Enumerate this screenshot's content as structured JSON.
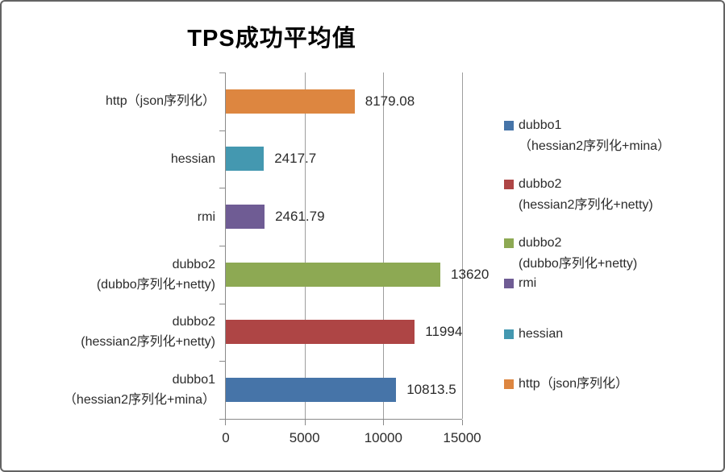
{
  "figure": {
    "title": "TPS成功平均值"
  },
  "chart_data": {
    "type": "bar",
    "orientation": "horizontal",
    "title": "TPS成功平均值",
    "categories": [
      "http（json序列化）",
      "hessian",
      "rmi",
      "dubbo2 (dubbo序列化+netty)",
      "dubbo2 (hessian2序列化+netty)",
      "dubbo1 （hessian2序列化+mina）"
    ],
    "values": [
      8179.08,
      2417.7,
      2461.79,
      13620,
      11994,
      10813.5
    ],
    "value_labels": [
      "8179.08",
      "2417.7",
      "2461.79",
      "13620",
      "11994",
      "10813.5"
    ],
    "xlim": [
      0,
      15000
    ],
    "x_ticks": [
      "0",
      "5000",
      "10000",
      "15000"
    ],
    "grid": true,
    "legend_position": "right"
  },
  "bars": [
    {
      "label_line1": "http（json序列化）",
      "label_line2": "",
      "value": 8179.08,
      "value_label": "8179.08",
      "color": "#DD8640"
    },
    {
      "label_line1": "hessian",
      "label_line2": "",
      "value": 2417.7,
      "value_label": "2417.7",
      "color": "#4498B0"
    },
    {
      "label_line1": "rmi",
      "label_line2": "",
      "value": 2461.79,
      "value_label": "2461.79",
      "color": "#6F5C94"
    },
    {
      "label_line1": "dubbo2",
      "label_line2": "(dubbo序列化+netty)",
      "value": 13620,
      "value_label": "13620",
      "color": "#8DA953"
    },
    {
      "label_line1": "dubbo2",
      "label_line2": "(hessian2序列化+netty)",
      "value": 11994,
      "value_label": "11994",
      "color": "#AE4545"
    },
    {
      "label_line1": "dubbo1",
      "label_line2": "（hessian2序列化+mina）",
      "value": 10813.5,
      "value_label": "10813.5",
      "color": "#4674A8"
    }
  ],
  "x_axis": {
    "max": 15000,
    "ticks": [
      "0",
      "5000",
      "10000",
      "15000"
    ]
  },
  "legend": {
    "items": [
      {
        "line1": "dubbo1",
        "line2": "（hessian2序列化+mina）",
        "color": "#4674A8"
      },
      {
        "line1": "dubbo2",
        "line2": "(hessian2序列化+netty)",
        "color": "#AE4545"
      },
      {
        "line1": "dubbo2",
        "line2": "(dubbo序列化+netty)",
        "color": "#8DA953"
      },
      {
        "line1": "rmi",
        "line2": "",
        "color": "#6F5C94"
      },
      {
        "line1": "hessian",
        "line2": "",
        "color": "#4498B0"
      },
      {
        "line1": "http（json序列化）",
        "line2": "",
        "color": "#DD8640"
      }
    ]
  },
  "colors": {
    "axis": "#8a8a8a",
    "grid": "#9e9e9e",
    "text": "#2b2b2b",
    "frame_border": "#636363"
  }
}
